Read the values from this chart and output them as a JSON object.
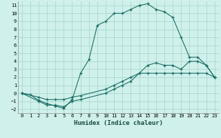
{
  "title": "",
  "xlabel": "Humidex (Indice chaleur)",
  "ylabel": "",
  "bg_color": "#cff0eb",
  "grid_color": "#aad8d0",
  "line_color": "#1a6e64",
  "xlim": [
    -0.5,
    23.5
  ],
  "ylim": [
    -2.5,
    11.5
  ],
  "xticks": [
    0,
    1,
    2,
    3,
    4,
    5,
    6,
    7,
    8,
    9,
    10,
    11,
    12,
    13,
    14,
    15,
    16,
    17,
    18,
    19,
    20,
    21,
    22,
    23
  ],
  "yticks": [
    -2,
    -1,
    0,
    1,
    2,
    3,
    4,
    5,
    6,
    7,
    8,
    9,
    10,
    11
  ],
  "line1_x": [
    0,
    1,
    2,
    3,
    4,
    5,
    6,
    7,
    8,
    9,
    10,
    11,
    12,
    13,
    14,
    15,
    16,
    17,
    18,
    19,
    20,
    21,
    22,
    23
  ],
  "line1_y": [
    0.0,
    -0.2,
    -0.9,
    -1.3,
    -1.6,
    -1.9,
    -0.8,
    2.5,
    4.2,
    8.5,
    9.0,
    10.0,
    10.0,
    10.5,
    11.0,
    11.2,
    10.5,
    10.2,
    9.5,
    7.0,
    4.5,
    4.5,
    3.5,
    2.0
  ],
  "line2_x": [
    0,
    2,
    3,
    4,
    5,
    6,
    7,
    10,
    11,
    12,
    13,
    14,
    15,
    16,
    17,
    18,
    19,
    20,
    21,
    22,
    23
  ],
  "line2_y": [
    0.0,
    -1.0,
    -1.5,
    -1.5,
    -1.7,
    -1.0,
    -0.8,
    0.0,
    0.5,
    1.0,
    1.5,
    2.5,
    3.5,
    3.8,
    3.5,
    3.5,
    3.0,
    4.0,
    4.0,
    3.5,
    2.0
  ],
  "line3_x": [
    0,
    2,
    3,
    4,
    5,
    6,
    7,
    10,
    11,
    12,
    13,
    14,
    15,
    16,
    17,
    18,
    19,
    20,
    21,
    22,
    23
  ],
  "line3_y": [
    0.0,
    -0.5,
    -0.8,
    -0.8,
    -0.8,
    -0.5,
    -0.3,
    0.5,
    1.0,
    1.5,
    2.0,
    2.5,
    2.5,
    2.5,
    2.5,
    2.5,
    2.5,
    2.5,
    2.5,
    2.5,
    2.0
  ]
}
